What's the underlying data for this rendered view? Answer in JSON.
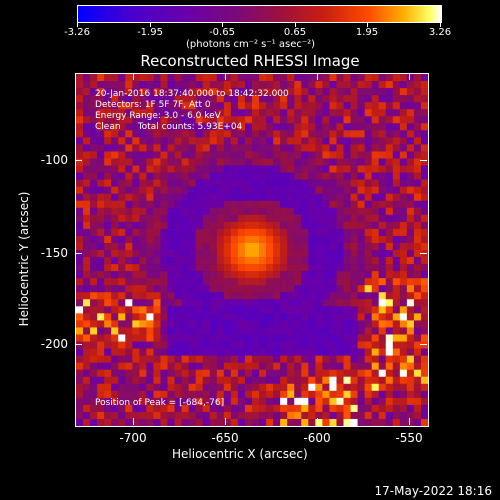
{
  "colorbar": {
    "tick_labels": [
      "-3.26",
      "-1.95",
      "-0.65",
      "0.65",
      "1.95",
      "3.26"
    ],
    "unit": "(photons cm⁻² s⁻¹ asec⁻²)",
    "range": [
      -3.26,
      3.26
    ]
  },
  "title": "Reconstructed RHESSI Image",
  "info": {
    "line1": "20-Jan-2016 18:37:40.000 to 18:42:32.000",
    "line2": "Detectors: 1F 5F 7F, Att 0",
    "line3": "Energy Range: 3.0 - 6.0 keV",
    "line4": "Clean      Total counts: 5.93E+04",
    "peak": "Position of Peak = [-684,-76]"
  },
  "axes": {
    "xlabel": "Heliocentric X (arcsec)",
    "ylabel": "Heliocentric Y (arcsec)",
    "xticks": [
      "-700",
      "-650",
      "-600",
      "-550"
    ],
    "yticks": [
      "-100",
      "-150",
      "-200"
    ]
  },
  "footer": {
    "date": "17-May-2022 18:16"
  }
}
